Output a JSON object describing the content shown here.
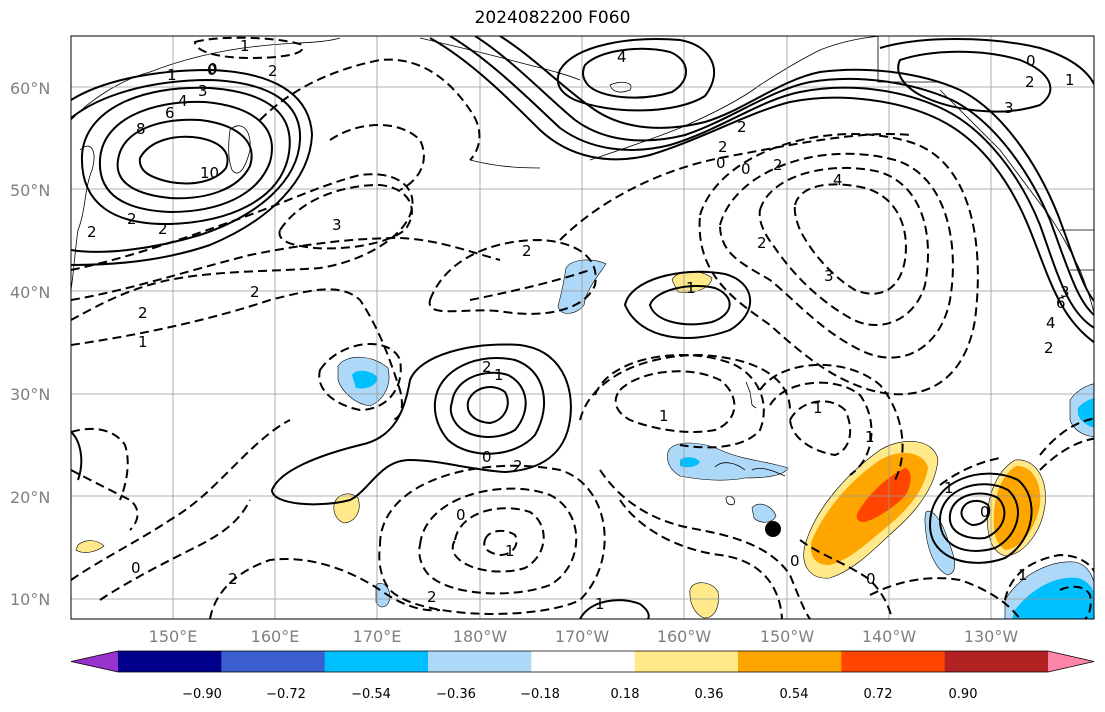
{
  "title": "2024082200 F060",
  "lat_labels": [
    "60°N",
    "50°N",
    "40°N",
    "30°N",
    "20°N",
    "10°N"
  ],
  "lon_labels": [
    "150°E",
    "160°E",
    "170°E",
    "180°W",
    "170°W",
    "160°W",
    "150°W",
    "140°W",
    "130°W"
  ],
  "colorbar": {
    "ticks": [
      "−0.90",
      "−0.72",
      "−0.54",
      "−0.36",
      "−0.18",
      "0.18",
      "0.36",
      "0.54",
      "0.72",
      "0.90"
    ],
    "colors": [
      "#9932cc",
      "#00008b",
      "#3a5fcd",
      "#00bfff",
      "#add8f7",
      "#ffffff",
      "#ffe98a",
      "#ffa500",
      "#ff4500",
      "#b22222",
      "#ff85a8"
    ]
  },
  "contour_labels": [
    "1",
    "0",
    "2",
    "4",
    "3",
    "6",
    "8",
    "10",
    "2",
    "2",
    "2",
    "1",
    "3",
    "2",
    "2",
    "1",
    "0",
    "2",
    "4",
    "0",
    "2",
    "0",
    "2",
    "2",
    "4",
    "3",
    "1",
    "2",
    "3",
    "0",
    "2",
    "1",
    "3",
    "6",
    "4",
    "2",
    "2",
    "1",
    "0",
    "2",
    "1",
    "1",
    "1",
    "0",
    "1",
    "0",
    "2",
    "2",
    "1",
    "0",
    "0",
    "1",
    "0",
    "1"
  ],
  "marker": "filled-circle"
}
